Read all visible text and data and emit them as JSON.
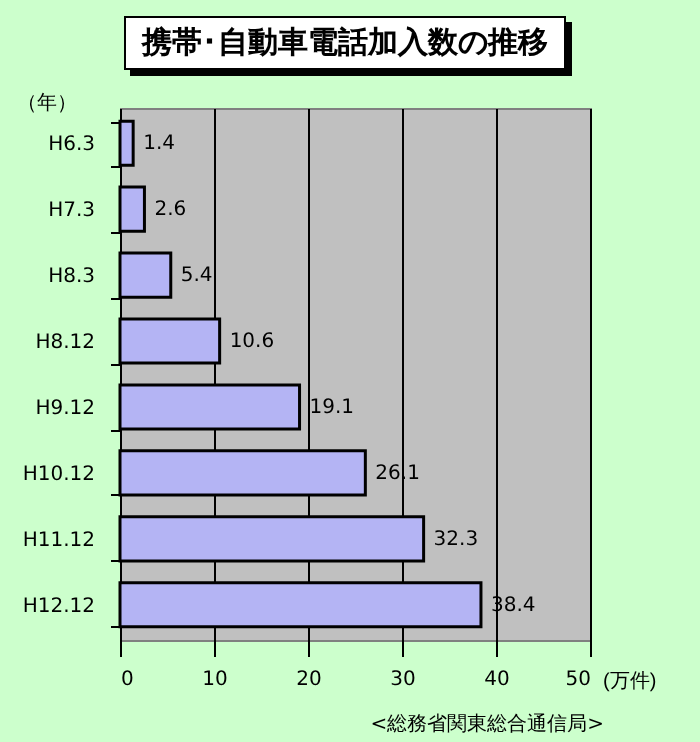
{
  "chart_data": {
    "type": "bar",
    "orientation": "horizontal",
    "title": "携帯･自動車電話加入数の推移",
    "ylabel": "（年）",
    "xlabel": "(万件)",
    "categories": [
      "H6.3",
      "H7.3",
      "H8.3",
      "H8.12",
      "H9.12",
      "H10.12",
      "H11.12",
      "H12.12"
    ],
    "values": [
      1.4,
      2.6,
      5.4,
      10.6,
      19.1,
      26.1,
      32.3,
      38.4
    ],
    "color": "#b4b4f4",
    "xlim": [
      0,
      50
    ],
    "xticks": [
      0,
      10,
      20,
      30,
      40,
      50
    ],
    "grid": "x",
    "data_labels": true,
    "annotations": [
      "<総務省関東総合通信局>"
    ]
  }
}
